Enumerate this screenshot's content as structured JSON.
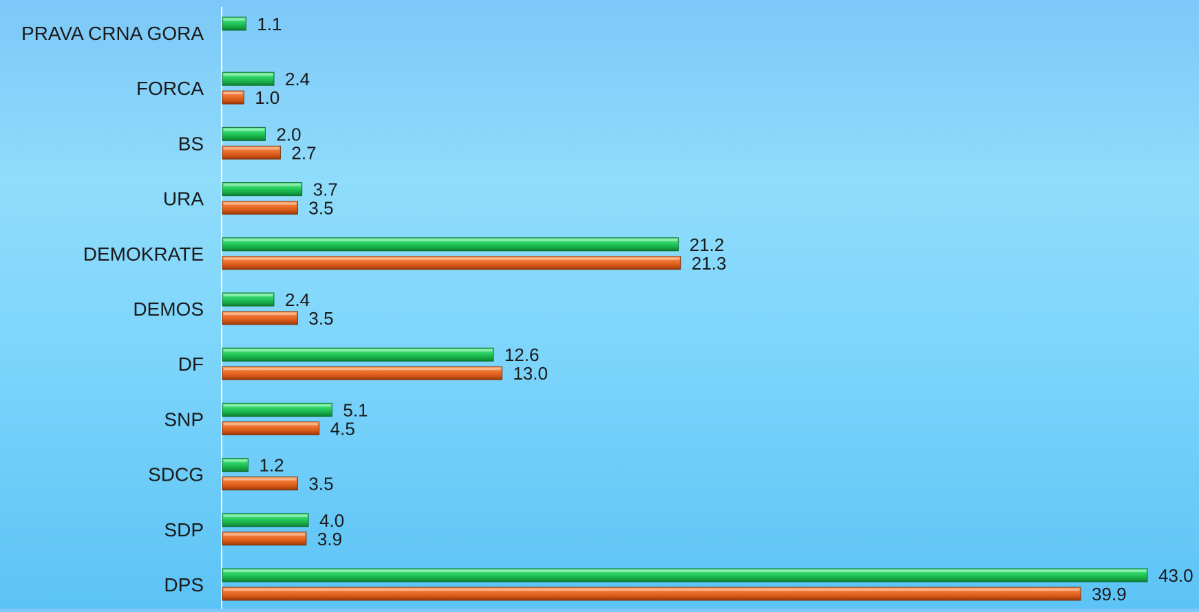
{
  "chart_data": {
    "type": "bar",
    "orientation": "horizontal",
    "categories": [
      "PRAVA CRNA GORA",
      "FORCA",
      "BS",
      "URA",
      "DEMOKRATE",
      "DEMOS",
      "DF",
      "SNP",
      "SDCG",
      "SDP",
      "DPS"
    ],
    "series": [
      {
        "color": "#1fbe4c",
        "values": [
          1.1,
          2.4,
          2.0,
          3.7,
          21.2,
          2.4,
          12.6,
          5.1,
          1.2,
          4.0,
          43.0
        ]
      },
      {
        "color": "#e0621c",
        "values": [
          null,
          1.0,
          2.7,
          3.5,
          21.3,
          3.5,
          13.0,
          4.5,
          3.5,
          3.9,
          39.9
        ]
      }
    ],
    "xlim": [
      0,
      45
    ],
    "value_labels": {
      "green": [
        "1.1",
        "2.4",
        "2.0",
        "3.7",
        "21.2",
        "2.4",
        "12.6",
        "5.1",
        "1.2",
        "4.0",
        "43.0"
      ],
      "orange": [
        "",
        "1.0",
        "2.7",
        "3.5",
        "21.3",
        "3.5",
        "13.0",
        "4.5",
        "3.5",
        "3.9",
        "39.9"
      ]
    },
    "grid": false,
    "legend": "none"
  }
}
